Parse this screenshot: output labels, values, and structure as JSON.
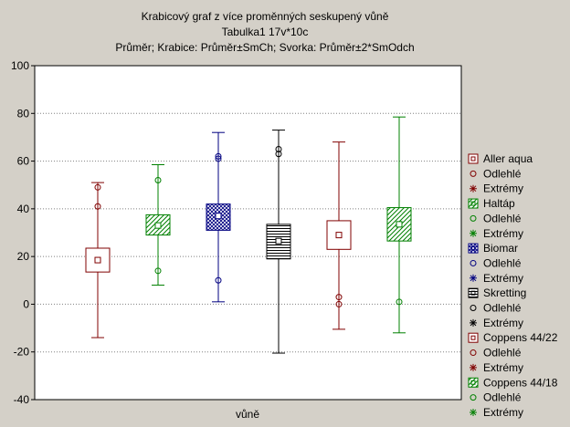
{
  "chart_data": {
    "type": "box",
    "title": "Krabicový graf z více proměnných seskupený vůně",
    "subtitle": "Tabulka1 17v*10c",
    "subtitle2": "Průměr; Krabice: Průměr±SmCh; Svorka: Průměr±2*SmOdch",
    "xlabel": "vůně",
    "ylabel": "",
    "ylim": [
      -40,
      100
    ],
    "yticks": [
      -40,
      -20,
      0,
      20,
      40,
      60,
      80,
      100
    ],
    "grid": true,
    "legend_position": "right",
    "series": [
      {
        "name": "Aller aqua",
        "color": "#800000",
        "pattern": "none",
        "mean": 18.5,
        "box_low": 13.5,
        "box_high": 23.5,
        "whisker_low": -14,
        "whisker_high": 51,
        "outliers": [
          49,
          41
        ],
        "extremes": []
      },
      {
        "name": "Haltáp",
        "color": "#008000",
        "pattern": "diag",
        "mean": 33,
        "box_low": 29,
        "box_high": 37.5,
        "whisker_low": 8,
        "whisker_high": 58.5,
        "outliers": [
          52,
          14
        ],
        "extremes": []
      },
      {
        "name": "Biomar",
        "color": "#000080",
        "pattern": "cross",
        "mean": 37,
        "box_low": 31,
        "box_high": 42,
        "whisker_low": 1,
        "whisker_high": 72,
        "outliers": [
          62,
          61,
          10
        ],
        "extremes": []
      },
      {
        "name": "Skretting",
        "color": "#000000",
        "pattern": "hlines",
        "mean": 26.5,
        "box_low": 19,
        "box_high": 33.5,
        "whisker_low": -20.5,
        "whisker_high": 73,
        "outliers": [
          65,
          63
        ],
        "extremes": []
      },
      {
        "name": "Coppens 44/22",
        "color": "#800000",
        "pattern": "none",
        "mean": 29,
        "box_low": 23,
        "box_high": 35,
        "whisker_low": -10.5,
        "whisker_high": 68,
        "outliers": [
          3,
          0
        ],
        "extremes": []
      },
      {
        "name": "Coppens 44/18",
        "color": "#008000",
        "pattern": "diag",
        "mean": 33.5,
        "box_low": 26.5,
        "box_high": 40.5,
        "whisker_low": -12,
        "whisker_high": 78.5,
        "outliers": [
          1
        ],
        "extremes": []
      }
    ],
    "legend_sublabels": {
      "outliers": "Odlehlé",
      "extremes": "Extrémy"
    }
  }
}
